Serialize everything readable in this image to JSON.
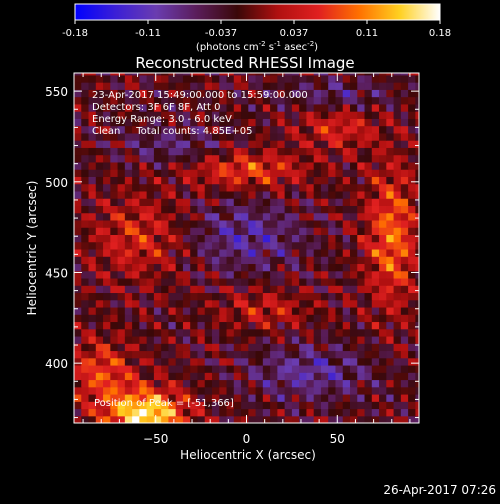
{
  "chart_data": {
    "type": "heatmap",
    "title": "Reconstructed RHESSI Image",
    "xlabel": "Heliocentric X (arcsec)",
    "ylabel": "Heliocentric Y (arcsec)",
    "xlim": [
      -95,
      95
    ],
    "ylim": [
      367,
      560
    ],
    "x_ticks": [
      -50,
      0,
      50
    ],
    "y_ticks": [
      400,
      450,
      500,
      550
    ],
    "colorbar": {
      "ticks": [
        "-0.18",
        "-0.11",
        "-0.037",
        "0.037",
        "0.11",
        "0.18"
      ],
      "range": [
        -0.18,
        0.18
      ],
      "unit_prefix": "(photons cm",
      "unit_exp1": "-2",
      "unit_mid1": " s",
      "unit_exp2": "-1",
      "unit_mid2": " asec",
      "unit_exp3": "-2",
      "unit_suffix": ")",
      "stops": [
        "#0000ff",
        "#3b1fd6",
        "#6a3cb0",
        "#5a1d5a",
        "#3a0808",
        "#b01010",
        "#e02020",
        "#ff7000",
        "#ffd020",
        "#ffffff"
      ]
    },
    "annotations": [
      "23-Apr-2017 15:49:00.000 to 15:59:00.000",
      "Detectors: 3F 6F 8F, Att 0",
      "Energy Range: 3.0 - 6.0 keV",
      "Clean     Total counts: 4.85E+05"
    ],
    "peak_label": "Position of Peak = [-51,366]",
    "peak": [
      -51,
      366
    ],
    "hot_regions": [
      {
        "x": -55,
        "y": 372,
        "amp": 0.18,
        "sx": 22,
        "sy": 14
      },
      {
        "x": -80,
        "y": 395,
        "amp": 0.09,
        "sx": 18,
        "sy": 18
      },
      {
        "x": 80,
        "y": 470,
        "amp": 0.11,
        "sx": 14,
        "sy": 38
      },
      {
        "x": 0,
        "y": 507,
        "amp": 0.09,
        "sx": 32,
        "sy": 10
      },
      {
        "x": 50,
        "y": 530,
        "amp": 0.07,
        "sx": 22,
        "sy": 12
      },
      {
        "x": -60,
        "y": 470,
        "amp": 0.07,
        "sx": 25,
        "sy": 22
      },
      {
        "x": 10,
        "y": 430,
        "amp": 0.06,
        "sx": 24,
        "sy": 10
      }
    ],
    "cold_regions": [
      {
        "x": 0,
        "y": 470,
        "amp": -0.07,
        "sx": 30,
        "sy": 18
      },
      {
        "x": 35,
        "y": 395,
        "amp": -0.07,
        "sx": 32,
        "sy": 14
      },
      {
        "x": -40,
        "y": 520,
        "amp": -0.05,
        "sx": 28,
        "sy": 10
      },
      {
        "x": 50,
        "y": 548,
        "amp": -0.05,
        "sx": 30,
        "sy": 9
      }
    ]
  },
  "footer": {
    "timestamp": "26-Apr-2017 07:26"
  }
}
